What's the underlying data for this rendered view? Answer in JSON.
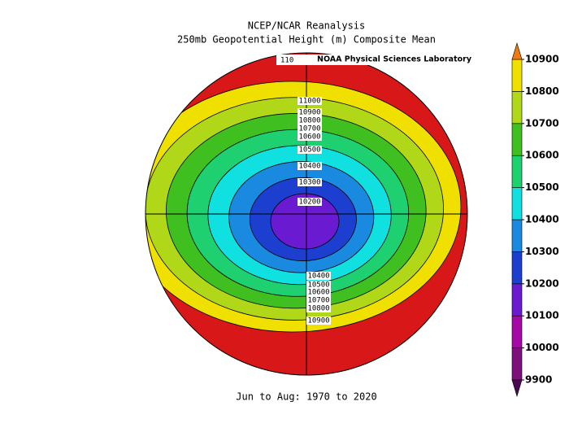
{
  "title": "NCEP/NCAR Reanalysis",
  "subtitle": "250mb Geopotential Height (m) Composite Mean",
  "credit": "NOAA Physical Sciences Laboratory",
  "footer": "Jun to Aug: 1970 to 2020",
  "contour_labels_top": [
    "11000",
    "10900",
    "10800",
    "10700",
    "10600",
    "10500",
    "10400",
    "10300",
    "10200"
  ],
  "contour_label_edge": "110",
  "contour_labels_bottom": [
    "10400",
    "10500",
    "10600",
    "10700",
    "10800",
    "10900"
  ],
  "colorbar": {
    "ticks": [
      9900,
      10000,
      10100,
      10200,
      10300,
      10400,
      10500,
      10600,
      10700,
      10800,
      10900
    ],
    "colors": [
      "#4a0a50",
      "#7d107d",
      "#a608a6",
      "#6a1ad0",
      "#1c3fd0",
      "#1a8ae0",
      "#10e0e0",
      "#1ed070",
      "#40c020",
      "#b0d818",
      "#f0e000",
      "#f07a10",
      "#d81818"
    ]
  }
}
